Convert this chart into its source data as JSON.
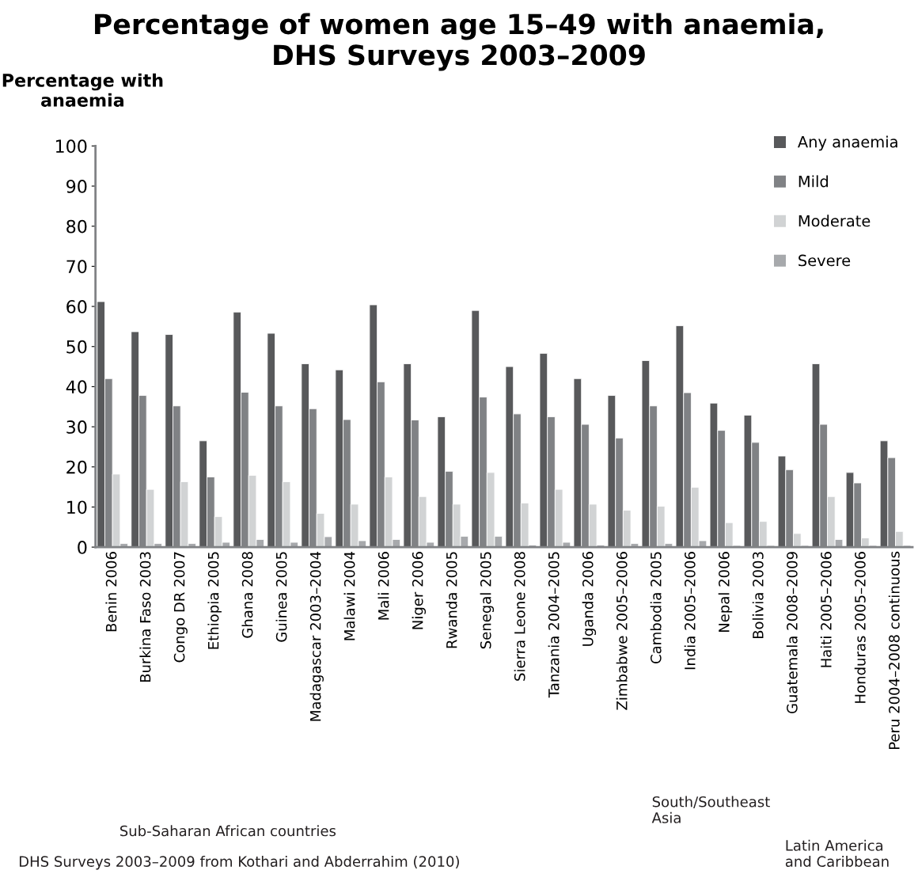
{
  "chart_data": {
    "type": "bar",
    "title": "Percentage of women age 15–49 with anaemia,\nDHS Surveys 2003–2009",
    "ylabel": "Percentage with\nanaemia",
    "categories": [
      "Benin 2006",
      "Burkina Faso 2003",
      "Congo DR 2007",
      "Ethiopia 2005",
      "Ghana 2008",
      "Guinea 2005",
      "Madagascar 2003–2004",
      "Malawi 2004",
      "Mali 2006",
      "Niger 2006",
      "Rwanda 2005",
      "Senegal 2005",
      "Sierra Leone 2008",
      "Tanzania 2004–2005",
      "Uganda 2006",
      "Zimbabwe 2005–2006",
      "Cambodia 2005",
      "India 2005–2006",
      "Nepal 2006",
      "Bolivia 2003",
      "Guatemala 2008–2009",
      "Haiti 2005–2006",
      "Honduras 2005–2006",
      "Peru 2004–2008 continuous"
    ],
    "series": [
      {
        "name": "Any anaemia",
        "color": "#58595b",
        "values": [
          61.2,
          53.7,
          53.0,
          26.5,
          58.6,
          53.3,
          45.7,
          44.2,
          60.4,
          45.7,
          32.5,
          59.0,
          45.0,
          48.3,
          42.0,
          37.8,
          46.5,
          55.2,
          35.9,
          32.9,
          22.7,
          45.7,
          18.6,
          26.5
        ]
      },
      {
        "name": "Mild",
        "color": "#808285",
        "values": [
          42.0,
          37.8,
          35.2,
          17.5,
          38.6,
          35.2,
          34.5,
          31.8,
          41.2,
          31.7,
          18.9,
          37.4,
          33.2,
          32.5,
          30.6,
          27.2,
          35.2,
          38.5,
          29.1,
          26.1,
          19.3,
          30.6,
          16.0,
          22.3
        ]
      },
      {
        "name": "Moderate",
        "color": "#d1d3d4",
        "values": [
          18.2,
          14.4,
          16.3,
          7.6,
          17.9,
          16.3,
          8.4,
          10.7,
          17.5,
          12.6,
          10.7,
          18.6,
          11.0,
          14.4,
          10.7,
          9.2,
          10.2,
          14.9,
          6.1,
          6.4,
          3.4,
          12.6,
          2.3,
          3.9
        ]
      },
      {
        "name": "Severe",
        "color": "#a7a9ac",
        "values": [
          0.9,
          0.9,
          0.9,
          1.2,
          1.9,
          1.2,
          2.6,
          1.6,
          1.9,
          1.2,
          2.7,
          2.7,
          0.5,
          1.2,
          0.5,
          0.9,
          0.9,
          1.6,
          0.4,
          0.4,
          0.4,
          1.9,
          0.4,
          0.4
        ]
      }
    ],
    "ylim": [
      0,
      100
    ],
    "yticks": [
      0,
      10,
      20,
      30,
      40,
      50,
      60,
      70,
      80,
      90,
      100
    ],
    "grid": false,
    "legend": "top right",
    "annotations": [
      "Sub-Saharan African countries",
      "South/Southeast\nAsia",
      "Latin America\nand Caribbean",
      "DHS Surveys 2003–2009 from Kothari and Abderrahim (2010)"
    ]
  }
}
